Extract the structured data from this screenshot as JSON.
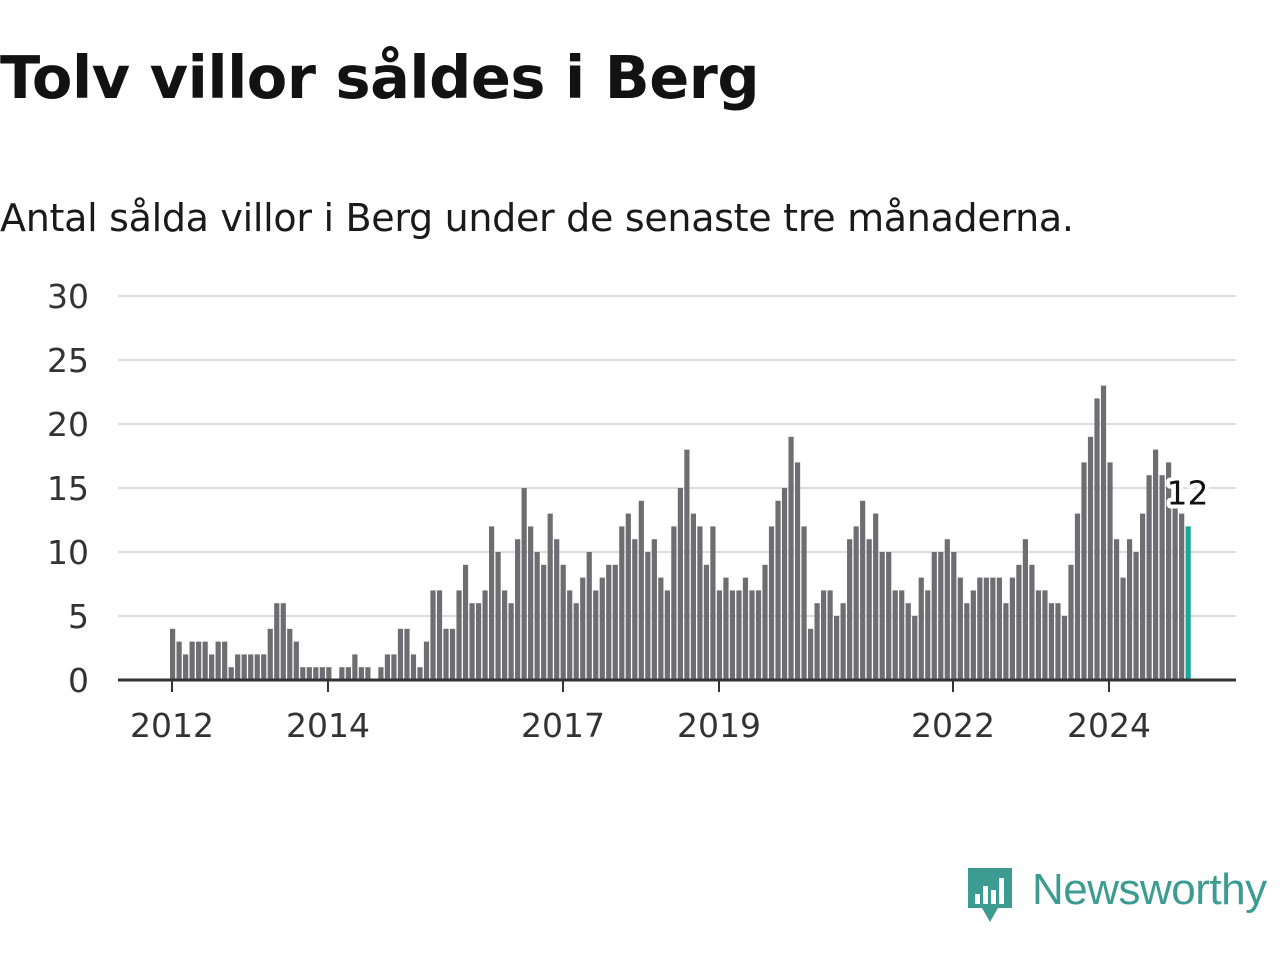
{
  "header": {
    "title": "Tolv villor såldes i Berg",
    "subtitle": "Antal sålda villor i Berg under de senaste tre månaderna."
  },
  "brand": {
    "name": "Newsworthy",
    "icon": "newsworthy-logo-icon",
    "color": "#3c9c92"
  },
  "colors": {
    "bar": "#6e6d72",
    "highlight": "#1fa696",
    "grid": "#dddddd",
    "axis": "#333333"
  },
  "chart_data": {
    "type": "bar",
    "title": "",
    "xlabel": "",
    "ylabel": "",
    "ylim": [
      0,
      30
    ],
    "yticks": [
      0,
      5,
      10,
      15,
      20,
      25,
      30
    ],
    "x_tick_labels": [
      "2012",
      "2014",
      "2017",
      "2019",
      "2022",
      "2024"
    ],
    "grid": true,
    "highlight_label": "12",
    "series": [
      {
        "values": [
          4,
          3,
          2,
          3,
          3,
          3,
          2,
          3,
          3,
          1,
          2,
          2,
          2,
          2,
          2,
          4,
          6,
          6,
          4,
          3,
          1,
          1,
          1,
          1,
          1,
          0,
          1,
          1,
          2,
          1,
          1,
          0,
          1,
          2,
          2,
          4,
          4,
          2,
          1,
          3,
          7,
          7,
          4,
          4,
          7,
          9,
          6,
          6,
          7,
          12,
          10,
          7,
          6,
          11,
          15,
          12,
          10,
          9,
          13,
          11,
          9,
          7,
          6,
          8,
          10,
          7,
          8,
          9,
          9,
          12,
          13,
          11,
          14,
          10,
          11,
          8,
          7,
          12,
          15,
          18,
          13,
          12,
          9,
          12,
          7,
          8,
          7,
          7,
          8,
          7,
          7,
          9,
          12,
          14,
          15,
          19,
          17,
          12,
          4,
          6,
          7,
          7,
          5,
          6,
          11,
          12,
          14,
          11,
          13,
          10,
          10,
          7,
          7,
          6,
          5,
          8,
          7,
          10,
          10,
          11,
          10,
          8,
          6,
          7,
          8,
          8,
          8,
          8,
          6,
          8,
          9,
          11,
          9,
          7,
          7,
          6,
          6,
          5,
          9,
          13,
          17,
          19,
          22,
          23,
          17,
          11,
          8,
          11,
          10,
          13,
          16,
          18,
          16,
          17,
          15,
          13,
          12
        ]
      }
    ]
  }
}
